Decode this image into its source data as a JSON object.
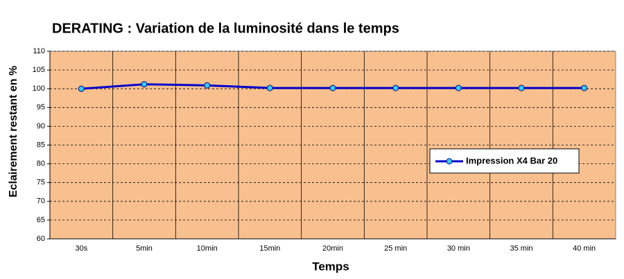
{
  "chart_data": {
    "type": "line",
    "title": "DERATING : Variation de la luminosité dans le temps",
    "x_label": "Temps",
    "y_label": "Eclairement restant en %",
    "categories": [
      "30s",
      "5min",
      "10min",
      "15min",
      "20min",
      "25 min",
      "30 min",
      "35 min",
      "40 min"
    ],
    "series": [
      {
        "name": "Impression X4 Bar 20",
        "color": "#0000cc",
        "marker_color": "#33ccff",
        "values": [
          100,
          101.2,
          100.9,
          100.2,
          100.2,
          100.2,
          100.2,
          100.2,
          100.2
        ]
      }
    ],
    "ylim": [
      60,
      110
    ],
    "yticks": [
      60,
      65,
      70,
      75,
      80,
      85,
      90,
      95,
      100,
      105,
      110
    ],
    "grid": true,
    "background": "#f9c08f"
  }
}
